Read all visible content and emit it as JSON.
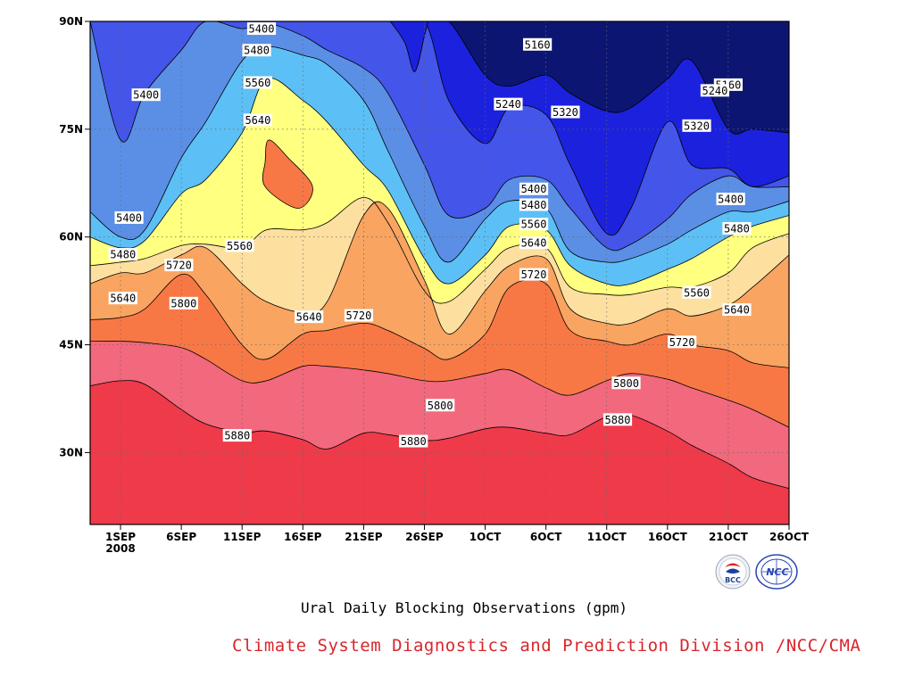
{
  "chart_data": {
    "type": "contour",
    "title": "Ural Daily Blocking Observations (gpm)",
    "credit": "Climate System Diagnostics and Prediction Division /NCC/CMA",
    "x_axis": {
      "type": "time",
      "tick_labels": [
        "1SEP",
        "6SEP",
        "11SEP",
        "16SEP",
        "21SEP",
        "26SEP",
        "1OCT",
        "6OCT",
        "11OCT",
        "16OCT",
        "21OCT",
        "26OCT"
      ],
      "tick_days": [
        1,
        6,
        11,
        16,
        21,
        26,
        31,
        36,
        41,
        46,
        51,
        56
      ],
      "year_label": "2008",
      "range_days": [
        -1.5,
        56
      ]
    },
    "y_axis": {
      "tick_labels": [
        "30N",
        "45N",
        "60N",
        "75N",
        "90N"
      ],
      "tick_values": [
        30,
        45,
        60,
        75,
        90
      ],
      "range": [
        20,
        90
      ]
    },
    "grid": true,
    "contour_levels": [
      5160,
      5240,
      5320,
      5400,
      5480,
      5560,
      5640,
      5720,
      5800,
      5880
    ],
    "fill_colors": [
      "#0c1672",
      "#1c21de",
      "#4455ea",
      "#5b8fe6",
      "#5cc0f6",
      "#ffff80",
      "#fde0a0",
      "#f9a460",
      "#f87845",
      "#f2687c",
      "#ef3a4a"
    ],
    "contour_latitude_by_day": {
      "days": [
        -1.5,
        1,
        3,
        6,
        8,
        11,
        13,
        16,
        18,
        21,
        23,
        26,
        28,
        31,
        33,
        36,
        38,
        41,
        43,
        46,
        48,
        51,
        53,
        56
      ],
      "5880": [
        39.3,
        40,
        39.5,
        36,
        34,
        32.8,
        33,
        31.8,
        30.5,
        32.7,
        32.5,
        31.7,
        32,
        33.3,
        33.5,
        32.7,
        32.5,
        35,
        35.2,
        33,
        31,
        28.5,
        26.5,
        25
      ],
      "5800": [
        45.5,
        45.5,
        45.3,
        44.6,
        43,
        40,
        40,
        42,
        42,
        41.5,
        41,
        40,
        40,
        41,
        41.5,
        39,
        38,
        40,
        41,
        40.2,
        39,
        37.3,
        36,
        33.5
      ],
      "5720": [
        48.5,
        48.8,
        50,
        54.8,
        52,
        45,
        43,
        46.5,
        47,
        48,
        47,
        44.5,
        43,
        46.5,
        53,
        53.5,
        47,
        45.5,
        45,
        46.5,
        45,
        44.2,
        42.5,
        41.8
      ],
      "5640": [
        53.5,
        55,
        55,
        57.5,
        58.5,
        53.5,
        51,
        49.5,
        51,
        63,
        64,
        54,
        46.5,
        52.5,
        56,
        57,
        50,
        48,
        48,
        50,
        49,
        50.5,
        53,
        57.5
      ],
      "5560": [
        56,
        56.5,
        57,
        58.8,
        59,
        58.5,
        61,
        61,
        62,
        65.5,
        62,
        52.5,
        51,
        55.5,
        58.5,
        58.5,
        53,
        52,
        52,
        53,
        53,
        55,
        58.5,
        60.5
      ],
      "5480": [
        60,
        58.5,
        59.5,
        66,
        68,
        74.5,
        82,
        79,
        76,
        70,
        66.5,
        57,
        53.5,
        57.5,
        61.5,
        61,
        56,
        53.5,
        53.5,
        55.5,
        57,
        60,
        61.5,
        63
      ],
      "5400": [
        63.5,
        60,
        61,
        71,
        76,
        84.5,
        86.5,
        85.3,
        84,
        79,
        72,
        61.5,
        56.5,
        62.5,
        65,
        64,
        58,
        56.5,
        57,
        59,
        61,
        63.5,
        63.5,
        65
      ],
      "5320": [
        90,
        73.5,
        80,
        86,
        90,
        89,
        89.8,
        88,
        86,
        83.5,
        80,
        70,
        63,
        64,
        68,
        68,
        64,
        58.5,
        59,
        62.5,
        66,
        68.5,
        67,
        67
      ],
      "5240": [
        90,
        90,
        90,
        90,
        90,
        90,
        90,
        90,
        90,
        90,
        90,
        90,
        79,
        73,
        78,
        77,
        70,
        60.5,
        64,
        76,
        70,
        69.5,
        67,
        68.5
      ],
      "5160": [
        90,
        90,
        90,
        90,
        90,
        90,
        90,
        90,
        90,
        90,
        90,
        90,
        90,
        82.5,
        81,
        82.5,
        80,
        77.5,
        78,
        82,
        84.5,
        75,
        75,
        74.5
      ]
    },
    "closed_contours": [
      {
        "level": 5720,
        "lat": [
          73.5,
          71,
          67,
          64,
          67,
          70.5
        ],
        "day": [
          13.2,
          14.8,
          16.8,
          15.6,
          12.9,
          12.9
        ]
      }
    ],
    "notches": [
      {
        "level": 5240,
        "lat": [
          90,
          87,
          83,
          88,
          90
        ],
        "day": [
          23.2,
          24.4,
          25.2,
          26,
          26.3
        ]
      }
    ],
    "contour_labels": [
      {
        "text": "5400",
        "day": 12.6,
        "lat": 89
      },
      {
        "text": "5480",
        "day": 12.2,
        "lat": 86
      },
      {
        "text": "5560",
        "day": 12.3,
        "lat": 81.5
      },
      {
        "text": "5640",
        "day": 12.3,
        "lat": 76.3
      },
      {
        "text": "5400",
        "day": 3.1,
        "lat": 79.8
      },
      {
        "text": "5160",
        "day": 35.3,
        "lat": 86.8
      },
      {
        "text": "5240",
        "day": 32.9,
        "lat": 78.5
      },
      {
        "text": "5320",
        "day": 37.6,
        "lat": 77.4
      },
      {
        "text": "5160",
        "day": 51,
        "lat": 81.2
      },
      {
        "text": "5240",
        "day": 49.9,
        "lat": 80.4
      },
      {
        "text": "5320",
        "day": 48.4,
        "lat": 75.5
      },
      {
        "text": "5400",
        "day": 35,
        "lat": 66.7
      },
      {
        "text": "5480",
        "day": 35,
        "lat": 64.5
      },
      {
        "text": "5560",
        "day": 35,
        "lat": 61.8
      },
      {
        "text": "5640",
        "day": 35,
        "lat": 59.2
      },
      {
        "text": "5720",
        "day": 35,
        "lat": 54.8
      },
      {
        "text": "5400",
        "day": 51.2,
        "lat": 65.3
      },
      {
        "text": "5480",
        "day": 51.7,
        "lat": 61.2
      },
      {
        "text": "5560",
        "day": 48.4,
        "lat": 52.3
      },
      {
        "text": "5640",
        "day": 51.7,
        "lat": 49.9
      },
      {
        "text": "5720",
        "day": 47.2,
        "lat": 45.4
      },
      {
        "text": "5800",
        "day": 42.6,
        "lat": 39.7
      },
      {
        "text": "5880",
        "day": 41.9,
        "lat": 34.6
      },
      {
        "text": "5400",
        "day": 1.7,
        "lat": 62.7
      },
      {
        "text": "5480",
        "day": 1.2,
        "lat": 57.6
      },
      {
        "text": "5640",
        "day": 1.2,
        "lat": 51.5
      },
      {
        "text": "5720",
        "day": 5.8,
        "lat": 56.1
      },
      {
        "text": "5800",
        "day": 6.2,
        "lat": 50.8
      },
      {
        "text": "5560",
        "day": 10.8,
        "lat": 58.8
      },
      {
        "text": "5640",
        "day": 16.5,
        "lat": 48.9
      },
      {
        "text": "5720",
        "day": 20.6,
        "lat": 49.1
      },
      {
        "text": "5880",
        "day": 10.6,
        "lat": 32.4
      },
      {
        "text": "5800",
        "day": 27.3,
        "lat": 36.6
      },
      {
        "text": "5880",
        "day": 25.1,
        "lat": 31.6
      }
    ]
  },
  "logos": {
    "left": {
      "name": "bcc-logo",
      "text": "BCC",
      "colors": [
        "#1c3f99",
        "#e02020"
      ]
    },
    "right": {
      "name": "ncc-logo",
      "text": "NCC",
      "color": "#2b44b8"
    }
  }
}
